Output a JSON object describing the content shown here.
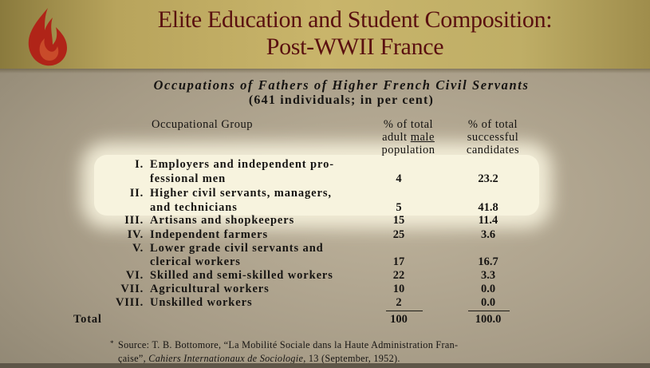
{
  "slide": {
    "title_line1": "Elite Education and Student Composition:",
    "title_line2": "Post-WWII France",
    "logo_icon": "flame-logo-icon"
  },
  "table": {
    "subtitle": "Occupations of Fathers of Higher French Civil Servants",
    "subtitle2": "(641 individuals; in per cent)",
    "headers": {
      "group": "Occupational Group",
      "col1_l1": "% of total",
      "col1_l2_a": "adult ",
      "col1_l2_b": "male",
      "col1_l3": "population",
      "col2_l1": "% of total",
      "col2_l2": "successful",
      "col2_l3": "candidates"
    },
    "rows": [
      {
        "numeral": "I.",
        "line1": "Employers and independent pro-",
        "line2": "fessional men",
        "pop": "4",
        "cand": "23.2"
      },
      {
        "numeral": "II.",
        "line1": "Higher civil servants, managers,",
        "line2": "and technicians",
        "pop": "5",
        "cand": "41.8"
      },
      {
        "numeral": "III.",
        "line1": "Artisans and shopkeepers",
        "pop": "15",
        "cand": "11.4"
      },
      {
        "numeral": "IV.",
        "line1": "Independent farmers",
        "pop": "25",
        "cand": "3.6"
      },
      {
        "numeral": "V.",
        "line1": "Lower grade civil servants and",
        "line2": "clerical workers",
        "pop": "17",
        "cand": "16.7"
      },
      {
        "numeral": "VI.",
        "line1": "Skilled and semi-skilled workers",
        "pop": "22",
        "cand": "3.3"
      },
      {
        "numeral": "VII.",
        "line1": "Agricultural workers",
        "pop": "10",
        "cand": "0.0"
      },
      {
        "numeral": "VIII.",
        "line1": "Unskilled workers",
        "pop": "2",
        "cand": "0.0"
      }
    ],
    "total": {
      "label": "Total",
      "pop": "100",
      "cand": "100.0"
    },
    "footnote": {
      "star": "*",
      "line1": "Source: T. B. Bottomore, “La Mobilité Sociale dans la Haute Administration Fran-",
      "line2_a": "çaise”, ",
      "line2_b": "Cahiers Internationaux de Sociologie",
      "line2_c": ", 13 (September, 1952)."
    }
  },
  "colors": {
    "title": "#5a1010",
    "header_band": "#c9b56b",
    "highlight": "#f7f3de"
  }
}
